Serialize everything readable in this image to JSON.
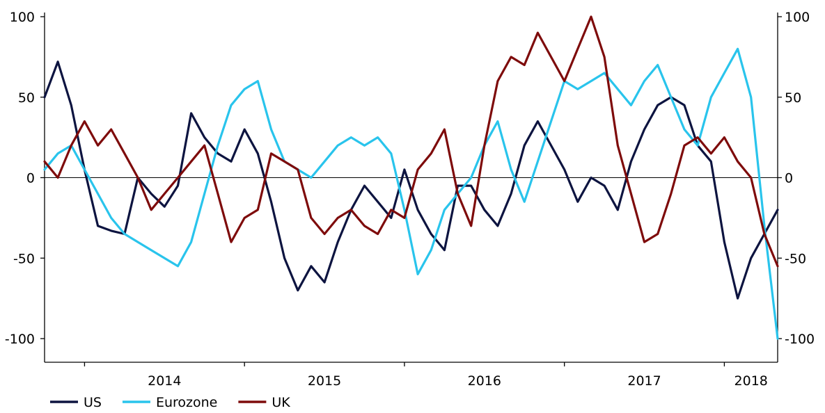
{
  "chart_data": {
    "type": "line",
    "title": "",
    "xlabel": "",
    "ylabel": "",
    "ylim": [
      -115,
      100
    ],
    "y_ticks": [
      100,
      50,
      0,
      -50,
      -100
    ],
    "y_tick_labels": [
      "100",
      "50",
      "0",
      "-50",
      "-100"
    ],
    "secondary_y_tick_labels": [
      "100",
      "50",
      "0",
      "-50",
      "-100"
    ],
    "xlim": [
      "2013-10",
      "2018-05"
    ],
    "x_tick_labels": [
      "2014",
      "2015",
      "2016",
      "2017",
      "2018"
    ],
    "zero_line": true,
    "grid": false,
    "legend_position": "bottom-left",
    "series": [
      {
        "name": "US",
        "color": "#0d1440",
        "points": [
          [
            "2013-10",
            50
          ],
          [
            "2013-11",
            72
          ],
          [
            "2013-12",
            45
          ],
          [
            "2014-01",
            5
          ],
          [
            "2014-02",
            -30
          ],
          [
            "2014-03",
            -33
          ],
          [
            "2014-04",
            -35
          ],
          [
            "2014-05",
            0
          ],
          [
            "2014-06",
            -10
          ],
          [
            "2014-07",
            -18
          ],
          [
            "2014-08",
            -5
          ],
          [
            "2014-09",
            40
          ],
          [
            "2014-10",
            25
          ],
          [
            "2014-11",
            15
          ],
          [
            "2014-12",
            10
          ],
          [
            "2015-01",
            30
          ],
          [
            "2015-02",
            15
          ],
          [
            "2015-03",
            -15
          ],
          [
            "2015-04",
            -50
          ],
          [
            "2015-05",
            -70
          ],
          [
            "2015-06",
            -55
          ],
          [
            "2015-07",
            -65
          ],
          [
            "2015-08",
            -40
          ],
          [
            "2015-09",
            -20
          ],
          [
            "2015-10",
            -5
          ],
          [
            "2015-11",
            -15
          ],
          [
            "2015-12",
            -25
          ],
          [
            "2016-01",
            5
          ],
          [
            "2016-02",
            -20
          ],
          [
            "2016-03",
            -35
          ],
          [
            "2016-04",
            -45
          ],
          [
            "2016-05",
            -5
          ],
          [
            "2016-06",
            -5
          ],
          [
            "2016-07",
            -20
          ],
          [
            "2016-08",
            -30
          ],
          [
            "2016-09",
            -10
          ],
          [
            "2016-10",
            20
          ],
          [
            "2016-11",
            35
          ],
          [
            "2017-01",
            5
          ],
          [
            "2017-02",
            -15
          ],
          [
            "2017-03",
            0
          ],
          [
            "2017-04",
            -5
          ],
          [
            "2017-05",
            -20
          ],
          [
            "2017-06",
            10
          ],
          [
            "2017-07",
            30
          ],
          [
            "2017-08",
            45
          ],
          [
            "2017-09",
            50
          ],
          [
            "2017-10",
            45
          ],
          [
            "2017-11",
            20
          ],
          [
            "2017-12",
            10
          ],
          [
            "2018-01",
            -40
          ],
          [
            "2018-02",
            -75
          ],
          [
            "2018-03",
            -50
          ],
          [
            "2018-04",
            -35
          ],
          [
            "2018-05",
            -20
          ]
        ]
      },
      {
        "name": "Eurozone",
        "color": "#29c4ec",
        "points": [
          [
            "2013-10",
            5
          ],
          [
            "2013-11",
            15
          ],
          [
            "2013-12",
            20
          ],
          [
            "2014-01",
            5
          ],
          [
            "2014-02",
            -10
          ],
          [
            "2014-03",
            -25
          ],
          [
            "2014-04",
            -35
          ],
          [
            "2014-05",
            -40
          ],
          [
            "2014-06",
            -45
          ],
          [
            "2014-07",
            -50
          ],
          [
            "2014-08",
            -55
          ],
          [
            "2014-09",
            -40
          ],
          [
            "2014-10",
            -10
          ],
          [
            "2014-11",
            20
          ],
          [
            "2014-12",
            45
          ],
          [
            "2015-01",
            55
          ],
          [
            "2015-02",
            60
          ],
          [
            "2015-03",
            30
          ],
          [
            "2015-04",
            10
          ],
          [
            "2015-05",
            5
          ],
          [
            "2015-06",
            0
          ],
          [
            "2015-07",
            10
          ],
          [
            "2015-08",
            20
          ],
          [
            "2015-09",
            25
          ],
          [
            "2015-10",
            20
          ],
          [
            "2015-11",
            25
          ],
          [
            "2015-12",
            15
          ],
          [
            "2016-01",
            -20
          ],
          [
            "2016-02",
            -60
          ],
          [
            "2016-03",
            -45
          ],
          [
            "2016-04",
            -20
          ],
          [
            "2016-05",
            -10
          ],
          [
            "2016-06",
            0
          ],
          [
            "2016-07",
            20
          ],
          [
            "2016-08",
            35
          ],
          [
            "2016-09",
            5
          ],
          [
            "2016-10",
            -15
          ],
          [
            "2016-11",
            10
          ],
          [
            "2017-01",
            60
          ],
          [
            "2017-02",
            55
          ],
          [
            "2017-03",
            60
          ],
          [
            "2017-04",
            65
          ],
          [
            "2017-05",
            55
          ],
          [
            "2017-06",
            45
          ],
          [
            "2017-07",
            60
          ],
          [
            "2017-08",
            70
          ],
          [
            "2017-09",
            50
          ],
          [
            "2017-10",
            30
          ],
          [
            "2017-11",
            20
          ],
          [
            "2017-12",
            50
          ],
          [
            "2018-01",
            65
          ],
          [
            "2018-02",
            80
          ],
          [
            "2018-03",
            50
          ],
          [
            "2018-04",
            -30
          ],
          [
            "2018-05",
            -100
          ]
        ]
      },
      {
        "name": "UK",
        "color": "#7e0b0b",
        "points": [
          [
            "2013-10",
            10
          ],
          [
            "2013-11",
            0
          ],
          [
            "2013-12",
            20
          ],
          [
            "2014-01",
            35
          ],
          [
            "2014-02",
            20
          ],
          [
            "2014-03",
            30
          ],
          [
            "2014-04",
            15
          ],
          [
            "2014-05",
            0
          ],
          [
            "2014-06",
            -20
          ],
          [
            "2014-07",
            -10
          ],
          [
            "2014-08",
            0
          ],
          [
            "2014-09",
            10
          ],
          [
            "2014-10",
            20
          ],
          [
            "2014-11",
            -10
          ],
          [
            "2014-12",
            -40
          ],
          [
            "2015-01",
            -25
          ],
          [
            "2015-02",
            -20
          ],
          [
            "2015-03",
            15
          ],
          [
            "2015-04",
            10
          ],
          [
            "2015-05",
            5
          ],
          [
            "2015-06",
            -25
          ],
          [
            "2015-07",
            -35
          ],
          [
            "2015-08",
            -25
          ],
          [
            "2015-09",
            -20
          ],
          [
            "2015-10",
            -30
          ],
          [
            "2015-11",
            -35
          ],
          [
            "2015-12",
            -20
          ],
          [
            "2016-01",
            -25
          ],
          [
            "2016-02",
            5
          ],
          [
            "2016-03",
            15
          ],
          [
            "2016-04",
            30
          ],
          [
            "2016-05",
            -10
          ],
          [
            "2016-06",
            -30
          ],
          [
            "2016-07",
            20
          ],
          [
            "2016-08",
            60
          ],
          [
            "2016-09",
            75
          ],
          [
            "2016-10",
            70
          ],
          [
            "2016-11",
            90
          ],
          [
            "2017-01",
            60
          ],
          [
            "2017-02",
            80
          ],
          [
            "2017-03",
            100
          ],
          [
            "2017-04",
            75
          ],
          [
            "2017-05",
            20
          ],
          [
            "2017-06",
            -10
          ],
          [
            "2017-07",
            -40
          ],
          [
            "2017-08",
            -35
          ],
          [
            "2017-09",
            -10
          ],
          [
            "2017-10",
            20
          ],
          [
            "2017-11",
            25
          ],
          [
            "2017-12",
            15
          ],
          [
            "2018-01",
            25
          ],
          [
            "2018-02",
            10
          ],
          [
            "2018-03",
            0
          ],
          [
            "2018-04",
            -35
          ],
          [
            "2018-05",
            -55
          ]
        ]
      }
    ]
  }
}
